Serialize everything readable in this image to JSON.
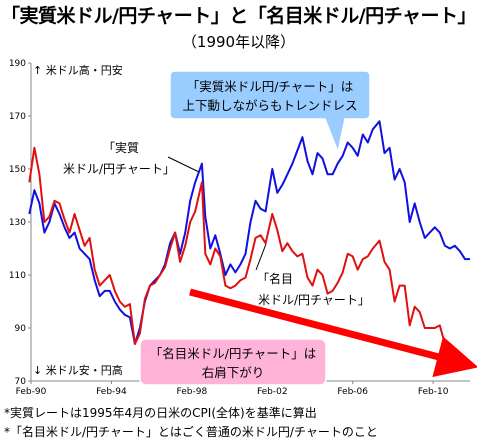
{
  "title": "「実質米ドル/円チャート」と「名目米ドル/円チャート」",
  "subtitle": "（1990年以降）",
  "chart_data": {
    "type": "line",
    "y_range": [
      70,
      190
    ],
    "y_ticks": [
      70,
      90,
      110,
      130,
      150,
      170,
      190
    ],
    "x_range": [
      "1990-02",
      "2011-12"
    ],
    "x_ticks": [
      "Feb-90",
      "Feb-94",
      "Feb-98",
      "Feb-02",
      "Feb-06",
      "Feb-10"
    ],
    "grid": false,
    "y_top_label": "↑ 米ドル高・円安",
    "y_bottom_label": "↓ 米ドル安・円高",
    "series": [
      {
        "name": "実質米ドル/円チャート",
        "color": "#1010e0",
        "points": [
          [
            "1990-01",
            133
          ],
          [
            "1990-04",
            142
          ],
          [
            "1990-07",
            137
          ],
          [
            "1990-10",
            126
          ],
          [
            "1991-01",
            130
          ],
          [
            "1991-04",
            137
          ],
          [
            "1991-07",
            133
          ],
          [
            "1991-10",
            128
          ],
          [
            "1992-01",
            124
          ],
          [
            "1992-04",
            126
          ],
          [
            "1992-07",
            120
          ],
          [
            "1992-10",
            118
          ],
          [
            "1993-01",
            116
          ],
          [
            "1993-04",
            108
          ],
          [
            "1993-07",
            102
          ],
          [
            "1993-10",
            104
          ],
          [
            "1994-01",
            104
          ],
          [
            "1994-04",
            100
          ],
          [
            "1994-07",
            97
          ],
          [
            "1994-10",
            95
          ],
          [
            "1995-01",
            94
          ],
          [
            "1995-04",
            84
          ],
          [
            "1995-07",
            90
          ],
          [
            "1995-10",
            100
          ],
          [
            "1996-01",
            106
          ],
          [
            "1996-04",
            108
          ],
          [
            "1996-07",
            110
          ],
          [
            "1996-10",
            114
          ],
          [
            "1997-01",
            122
          ],
          [
            "1997-04",
            126
          ],
          [
            "1997-07",
            118
          ],
          [
            "1997-10",
            126
          ],
          [
            "1998-01",
            138
          ],
          [
            "1998-04",
            145
          ],
          [
            "1998-08",
            152
          ],
          [
            "1998-10",
            132
          ],
          [
            "1999-01",
            120
          ],
          [
            "1999-04",
            125
          ],
          [
            "1999-07",
            118
          ],
          [
            "1999-10",
            110
          ],
          [
            "2000-01",
            114
          ],
          [
            "2000-04",
            111
          ],
          [
            "2000-07",
            114
          ],
          [
            "2000-10",
            118
          ],
          [
            "2001-01",
            130
          ],
          [
            "2001-04",
            138
          ],
          [
            "2001-07",
            135
          ],
          [
            "2001-10",
            134
          ],
          [
            "2002-02",
            150
          ],
          [
            "2002-05",
            141
          ],
          [
            "2002-08",
            144
          ],
          [
            "2002-11",
            148
          ],
          [
            "2003-02",
            152
          ],
          [
            "2003-05",
            157
          ],
          [
            "2003-08",
            162
          ],
          [
            "2003-11",
            153
          ],
          [
            "2004-02",
            148
          ],
          [
            "2004-05",
            156
          ],
          [
            "2004-08",
            154
          ],
          [
            "2004-11",
            148
          ],
          [
            "2005-02",
            148
          ],
          [
            "2005-05",
            152
          ],
          [
            "2005-08",
            155
          ],
          [
            "2005-11",
            160
          ],
          [
            "2006-02",
            158
          ],
          [
            "2006-05",
            155
          ],
          [
            "2006-08",
            163
          ],
          [
            "2006-11",
            160
          ],
          [
            "2007-02",
            165
          ],
          [
            "2007-06",
            168
          ],
          [
            "2007-09",
            156
          ],
          [
            "2007-12",
            158
          ],
          [
            "2008-03",
            146
          ],
          [
            "2008-06",
            150
          ],
          [
            "2008-09",
            145
          ],
          [
            "2008-12",
            130
          ],
          [
            "2009-03",
            137
          ],
          [
            "2009-06",
            130
          ],
          [
            "2009-09",
            124
          ],
          [
            "2009-12",
            126
          ],
          [
            "2010-03",
            128
          ],
          [
            "2010-06",
            126
          ],
          [
            "2010-09",
            121
          ],
          [
            "2010-12",
            120
          ],
          [
            "2011-03",
            121
          ],
          [
            "2011-06",
            119
          ],
          [
            "2011-09",
            116
          ],
          [
            "2011-12",
            116
          ]
        ]
      },
      {
        "name": "名目米ドル/円チャート",
        "color": "#e01010",
        "points": [
          [
            "1990-01",
            145
          ],
          [
            "1990-04",
            158
          ],
          [
            "1990-07",
            148
          ],
          [
            "1990-10",
            130
          ],
          [
            "1991-01",
            132
          ],
          [
            "1991-04",
            138
          ],
          [
            "1991-07",
            137
          ],
          [
            "1991-10",
            131
          ],
          [
            "1992-01",
            126
          ],
          [
            "1992-04",
            133
          ],
          [
            "1992-07",
            127
          ],
          [
            "1992-10",
            121
          ],
          [
            "1993-01",
            124
          ],
          [
            "1993-04",
            112
          ],
          [
            "1993-07",
            106
          ],
          [
            "1993-10",
            108
          ],
          [
            "1994-01",
            110
          ],
          [
            "1994-04",
            104
          ],
          [
            "1994-07",
            100
          ],
          [
            "1994-10",
            98
          ],
          [
            "1995-01",
            99
          ],
          [
            "1995-04",
            84
          ],
          [
            "1995-07",
            88
          ],
          [
            "1995-10",
            101
          ],
          [
            "1996-01",
            106
          ],
          [
            "1996-04",
            107
          ],
          [
            "1996-07",
            110
          ],
          [
            "1996-10",
            113
          ],
          [
            "1997-01",
            120
          ],
          [
            "1997-04",
            126
          ],
          [
            "1997-07",
            115
          ],
          [
            "1997-10",
            121
          ],
          [
            "1998-01",
            130
          ],
          [
            "1998-04",
            134
          ],
          [
            "1998-08",
            145
          ],
          [
            "1998-10",
            118
          ],
          [
            "1999-01",
            114
          ],
          [
            "1999-04",
            120
          ],
          [
            "1999-07",
            117
          ],
          [
            "1999-10",
            106
          ],
          [
            "2000-01",
            105
          ],
          [
            "2000-04",
            106
          ],
          [
            "2000-07",
            108
          ],
          [
            "2000-10",
            109
          ],
          [
            "2001-01",
            116
          ],
          [
            "2001-04",
            124
          ],
          [
            "2001-07",
            125
          ],
          [
            "2001-10",
            122
          ],
          [
            "2002-02",
            133
          ],
          [
            "2002-05",
            127
          ],
          [
            "2002-08",
            119
          ],
          [
            "2002-11",
            122
          ],
          [
            "2003-02",
            119
          ],
          [
            "2003-05",
            117
          ],
          [
            "2003-08",
            118
          ],
          [
            "2003-11",
            109
          ],
          [
            "2004-02",
            106
          ],
          [
            "2004-05",
            112
          ],
          [
            "2004-08",
            110
          ],
          [
            "2004-11",
            103
          ],
          [
            "2005-02",
            104
          ],
          [
            "2005-05",
            107
          ],
          [
            "2005-08",
            111
          ],
          [
            "2005-11",
            118
          ],
          [
            "2006-02",
            117
          ],
          [
            "2006-05",
            112
          ],
          [
            "2006-08",
            116
          ],
          [
            "2006-11",
            117
          ],
          [
            "2007-02",
            120
          ],
          [
            "2007-06",
            123
          ],
          [
            "2007-09",
            115
          ],
          [
            "2007-12",
            112
          ],
          [
            "2008-03",
            100
          ],
          [
            "2008-06",
            106
          ],
          [
            "2008-09",
            106
          ],
          [
            "2008-12",
            91
          ],
          [
            "2009-03",
            98
          ],
          [
            "2009-06",
            96
          ],
          [
            "2009-09",
            90
          ],
          [
            "2009-12",
            90
          ],
          [
            "2010-03",
            90
          ],
          [
            "2010-06",
            91
          ],
          [
            "2010-09",
            84
          ],
          [
            "2010-12",
            83
          ],
          [
            "2011-03",
            82
          ],
          [
            "2011-06",
            80
          ],
          [
            "2011-09",
            77
          ],
          [
            "2011-12",
            77
          ]
        ]
      }
    ],
    "annotations": {
      "callout_real_lines": [
        "「実質",
        "米ドル/円チャート」"
      ],
      "callout_nominal_lines": [
        "「名目",
        "米ドル/円チャート」"
      ],
      "bubble_blue_lines": [
        "「実質米ドル円/チャート」は",
        "上下動しながらもトレンドレス"
      ],
      "bubble_pink_lines": [
        "「名目米ドル/円チャート」は",
        "右肩下がり"
      ]
    }
  },
  "footnotes": [
    "*実質レートは1995年4月の日米のCPI(全体)を基準に算出",
    "*「名目米ドル/円チャート」とはごく普通の米ドル円/チャートのこと"
  ]
}
